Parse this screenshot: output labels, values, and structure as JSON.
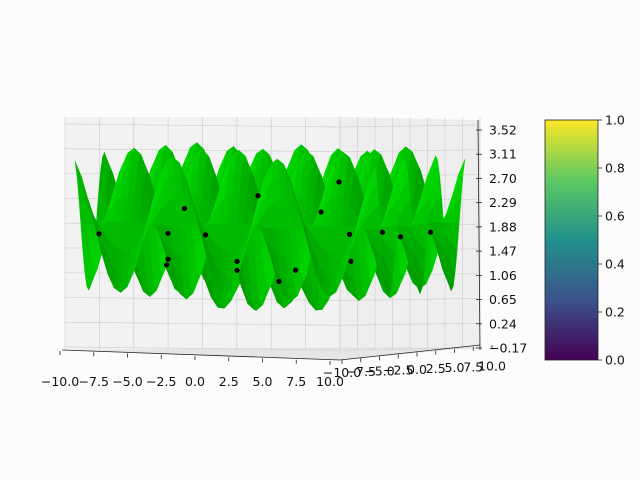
{
  "chart_data": {
    "type": "surface3d",
    "title": "",
    "xlabel": "",
    "ylabel": "",
    "zlabel": "",
    "surface_color": "#00d000",
    "scatter_color": "#000000",
    "x_ticks": [
      "−10.0",
      "−7.5",
      "−5.0",
      "−2.5",
      "0.0",
      "2.5",
      "5.0",
      "7.5",
      "10.0"
    ],
    "y_ticks": [
      "−10.0",
      "−7.5",
      "−5.0",
      "−2.5",
      "0.0",
      "2.5",
      "5.0",
      "7.5",
      "10.0"
    ],
    "z_ticks": [
      "3.52",
      "3.11",
      "2.70",
      "2.29",
      "1.88",
      "1.47",
      "1.06",
      "0.65",
      "0.24",
      "−0.17"
    ],
    "xlim": [
      -10,
      10
    ],
    "ylim": [
      -10,
      10
    ],
    "zlim": [
      -0.17,
      3.52
    ],
    "grid": true,
    "colorbar": {
      "colormap": "viridis",
      "colors": [
        "#440154",
        "#3b528b",
        "#21918c",
        "#5ec962",
        "#fde725"
      ],
      "ticks": [
        "0.0",
        "0.2",
        "0.4",
        "0.6",
        "0.8",
        "1.0"
      ],
      "range": [
        0,
        1
      ]
    }
  }
}
